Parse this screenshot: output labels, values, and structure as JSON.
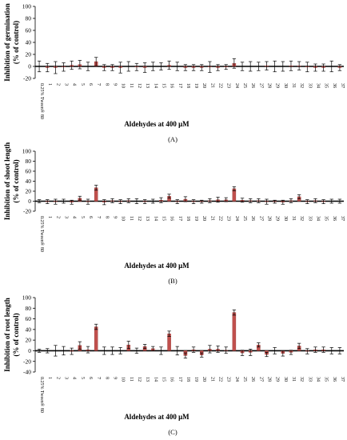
{
  "figure": {
    "panels": [
      "A",
      "B",
      "C"
    ]
  },
  "chart_data": [
    {
      "type": "bar",
      "panel_label": "(A)",
      "xlabel": "Aldehydes at 400 μM",
      "ylabel_line1": "Inhibition of germination",
      "ylabel_line2": "(% of control)",
      "ylim": [
        -20,
        100
      ],
      "yticks": [
        -20,
        0,
        20,
        40,
        60,
        80,
        100
      ],
      "categories": [
        "0.25% Tween® 80",
        "1",
        "2",
        "3",
        "4",
        "5",
        "6",
        "7",
        "8",
        "9",
        "10",
        "11",
        "12",
        "13",
        "14",
        "15",
        "16",
        "17",
        "18",
        "19",
        "20",
        "21",
        "22",
        "23",
        "24",
        "25",
        "26",
        "27",
        "28",
        "29",
        "30",
        "31",
        "32",
        "33",
        "34",
        "35",
        "36",
        "37"
      ],
      "values": [
        0,
        -2,
        -2,
        -1,
        2,
        3,
        0,
        8,
        -2,
        -2,
        -2,
        0,
        -1,
        -2,
        0,
        0,
        2,
        0,
        -2,
        -2,
        -2,
        -1,
        -2,
        -1,
        5,
        0,
        0,
        0,
        1,
        0,
        0,
        1,
        1,
        -1,
        -2,
        -2,
        0,
        -2
      ],
      "errors": [
        9,
        7,
        10,
        7,
        7,
        7,
        7,
        7,
        5,
        5,
        9,
        8,
        6,
        8,
        7,
        6,
        7,
        7,
        5,
        5,
        5,
        9,
        5,
        4,
        8,
        7,
        8,
        7,
        7,
        9,
        8,
        8,
        7,
        8,
        6,
        6,
        9,
        5
      ],
      "bar_color": "#c0504d"
    },
    {
      "type": "bar",
      "panel_label": "(B)",
      "xlabel": "Aldehydes at 400  μM",
      "ylabel_line1": "Inhibition of shoot length",
      "ylabel_line2": "(% of control)",
      "ylim": [
        -20,
        100
      ],
      "yticks": [
        -20,
        0,
        20,
        40,
        60,
        80,
        100
      ],
      "categories": [
        "0.25% Tween® 80",
        "1",
        "2",
        "3",
        "4",
        "5",
        "6",
        "7",
        "8",
        "9",
        "10",
        "11",
        "12",
        "13",
        "14",
        "15",
        "16",
        "17",
        "18",
        "19",
        "20",
        "21",
        "22",
        "23",
        "24",
        "25",
        "26",
        "27",
        "28",
        "29",
        "30",
        "31",
        "32",
        "33",
        "34",
        "35",
        "36",
        "37"
      ],
      "values": [
        0,
        -1,
        -1,
        0,
        -2,
        6,
        -1,
        27,
        -2,
        1,
        -1,
        1,
        0,
        -1,
        0,
        2,
        10,
        -1,
        4,
        -1,
        -1,
        1,
        3,
        3,
        25,
        2,
        1,
        1,
        -1,
        -1,
        -2,
        1,
        9,
        -1,
        1,
        -1,
        0,
        0
      ],
      "errors": [
        3,
        4,
        5,
        4,
        4,
        4,
        5,
        5,
        5,
        4,
        4,
        4,
        5,
        4,
        4,
        5,
        4,
        4,
        5,
        4,
        3,
        4,
        5,
        4,
        4,
        4,
        4,
        4,
        5,
        3,
        4,
        4,
        4,
        4,
        4,
        4,
        4,
        4
      ],
      "bar_color": "#c0504d"
    },
    {
      "type": "bar",
      "panel_label": "(C)",
      "xlabel": "Aldehydes at 400 μM",
      "ylabel_line1": "Inhibition of root length",
      "ylabel_line2": "(% of control)",
      "ylim": [
        -40,
        100
      ],
      "yticks": [
        -40,
        -20,
        0,
        20,
        40,
        60,
        80,
        100
      ],
      "categories": [
        "0.25% Tween® 80",
        "1",
        "2",
        "3",
        "4",
        "5",
        "6",
        "7",
        "8",
        "9",
        "10",
        "11",
        "12",
        "13",
        "14",
        "15",
        "16",
        "17",
        "18",
        "19",
        "20",
        "21",
        "22",
        "23",
        "24",
        "25",
        "26",
        "27",
        "28",
        "29",
        "30",
        "31",
        "32",
        "33",
        "34",
        "35",
        "36",
        "37"
      ],
      "values": [
        0,
        0,
        0,
        0,
        -1,
        10,
        2,
        45,
        0,
        0,
        0,
        11,
        0,
        8,
        4,
        0,
        32,
        0,
        -9,
        2,
        -8,
        3,
        3,
        1,
        72,
        -4,
        -3,
        11,
        -7,
        0,
        -5,
        -3,
        9,
        -1,
        2,
        2,
        0,
        0
      ],
      "errors": [
        3,
        4,
        10,
        8,
        6,
        7,
        6,
        5,
        7,
        7,
        6,
        7,
        5,
        4,
        4,
        7,
        5,
        8,
        5,
        5,
        4,
        7,
        6,
        6,
        5,
        5,
        6,
        4,
        4,
        6,
        5,
        4,
        5,
        5,
        5,
        5,
        6,
        6
      ],
      "bar_color": "#c0504d"
    }
  ]
}
